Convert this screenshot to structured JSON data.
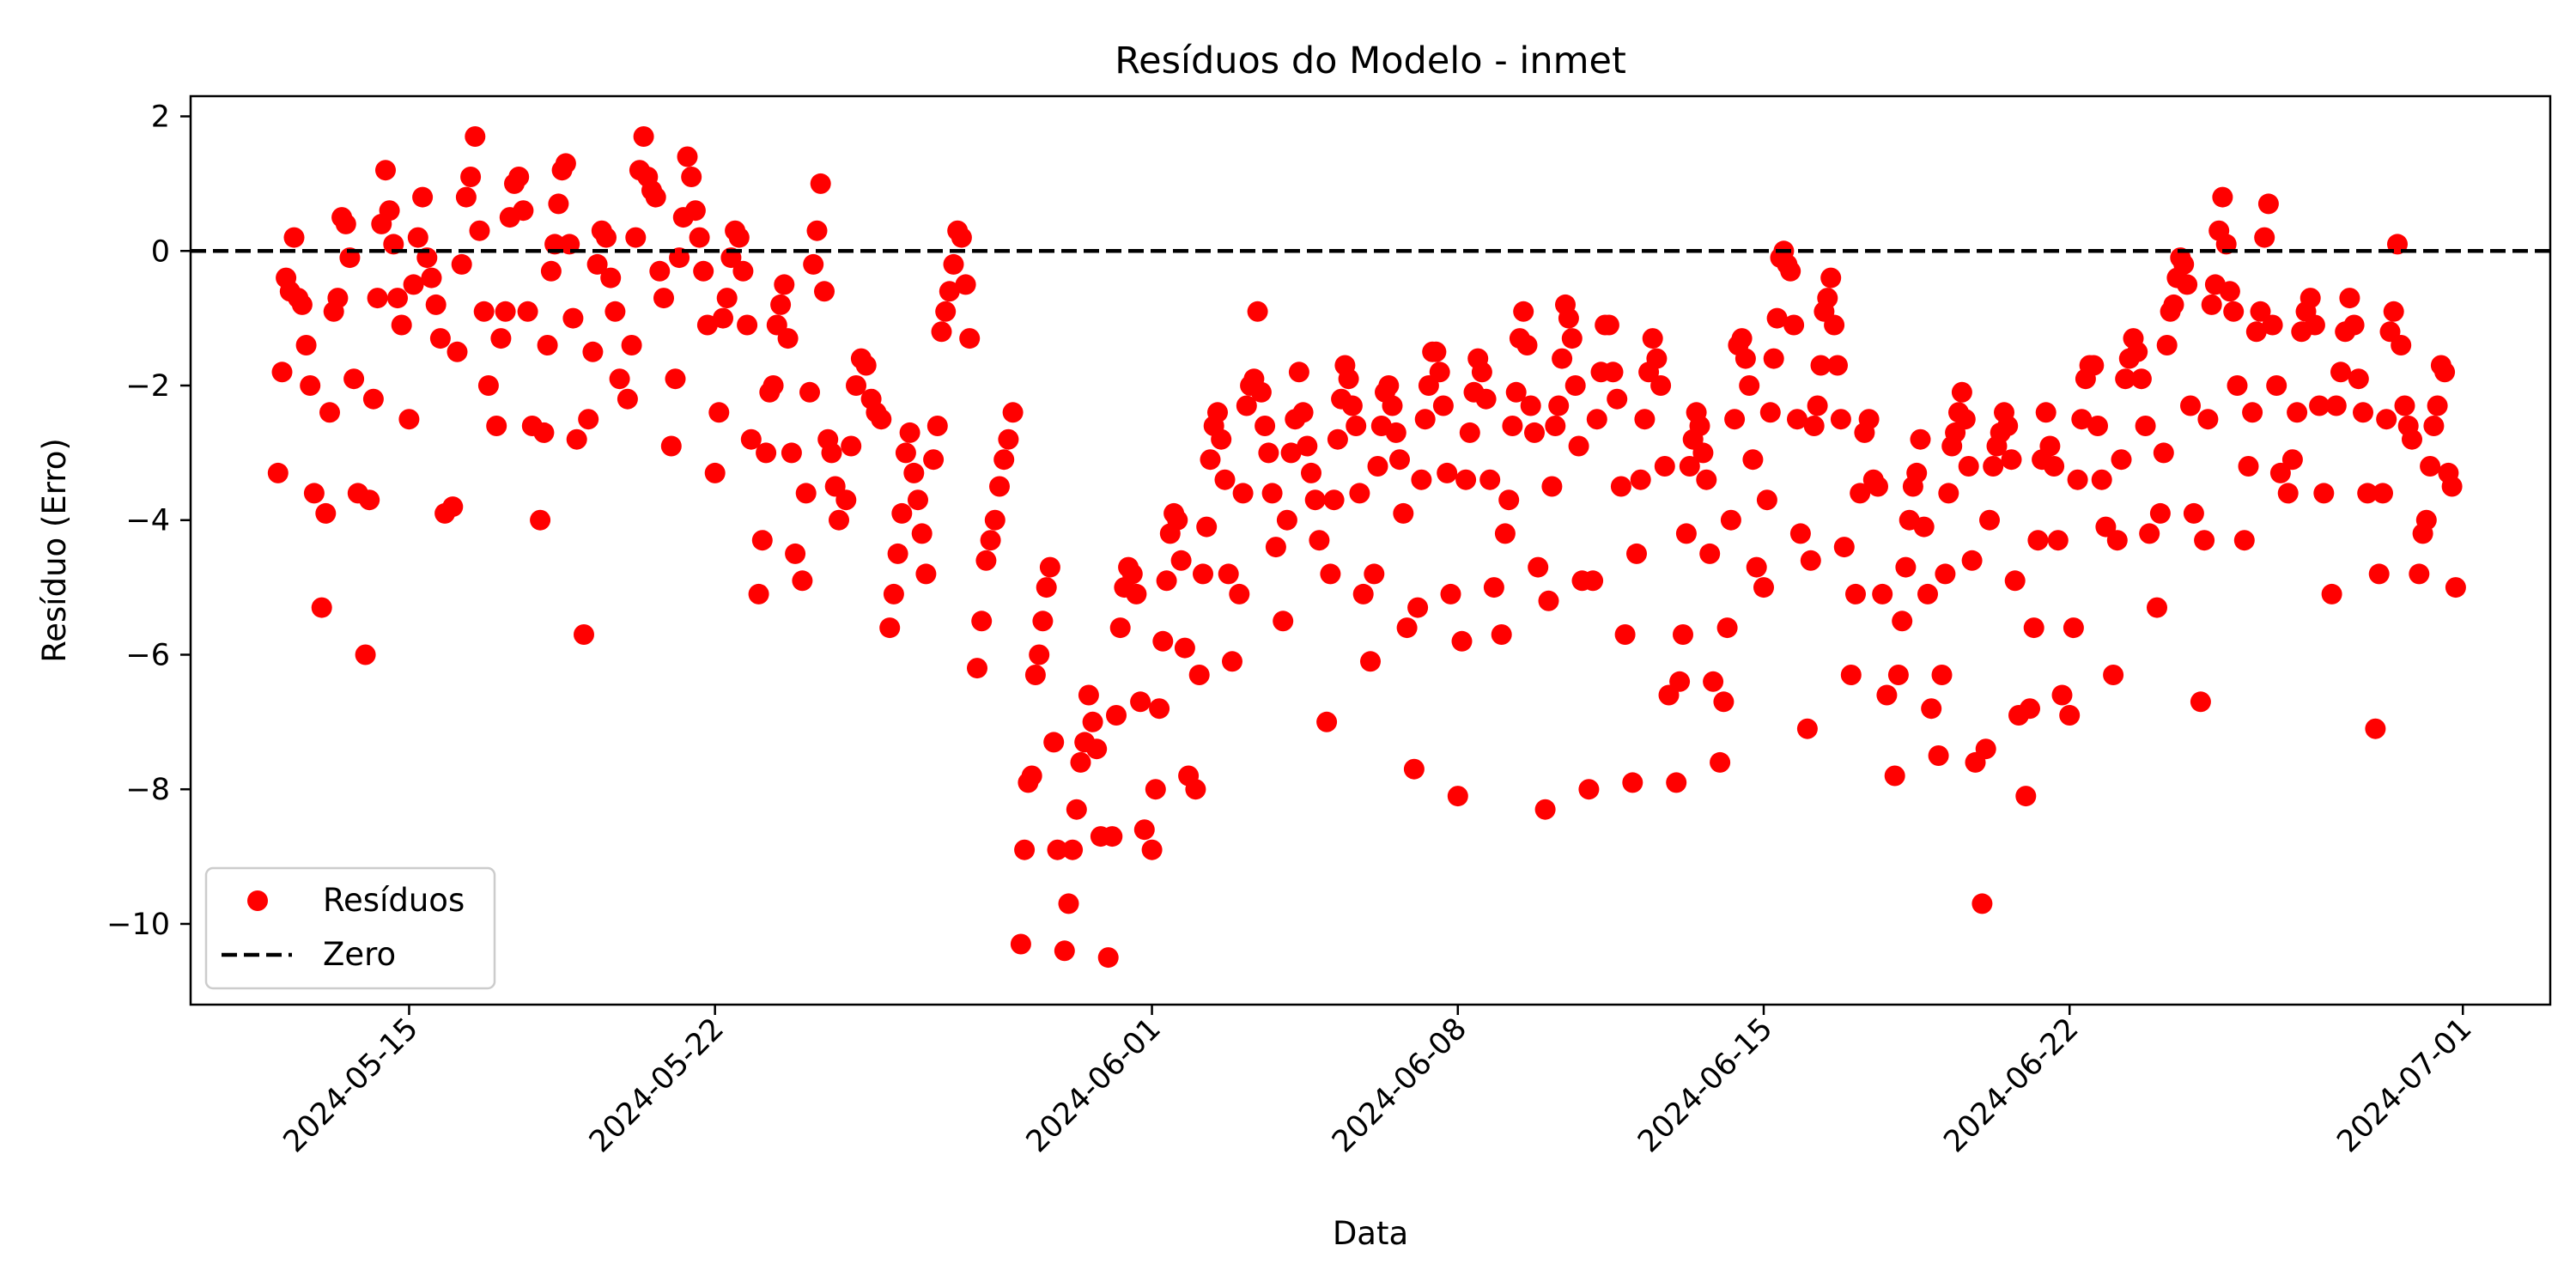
{
  "chart_data": {
    "type": "scatter",
    "title": "Resíduos do Modelo - inmet",
    "xlabel": "Data",
    "ylabel": "Resíduo (Erro)",
    "x_type": "date",
    "xlim": [
      "2024-05-10",
      "2024-07-03"
    ],
    "ylim": [
      -11.2,
      2.3
    ],
    "x_ticks": [
      "2024-05-15",
      "2024-05-22",
      "2024-06-01",
      "2024-06-08",
      "2024-06-15",
      "2024-06-22",
      "2024-07-01"
    ],
    "y_ticks": [
      2,
      0,
      -2,
      -4,
      -6,
      -8,
      -10
    ],
    "y_tick_labels": [
      "2",
      "0",
      "−2",
      "−4",
      "−6",
      "−8",
      "−10"
    ],
    "grid": false,
    "legend_position": "bottom-left",
    "reference_line": {
      "y": 0,
      "style": "dashed",
      "color": "#000000",
      "label": "Zero"
    },
    "series": [
      {
        "name": "Resíduos",
        "color": "#ff0000",
        "clusters": [
          {
            "date": "2024-05-12",
            "values": [
              -3.3,
              -1.8,
              -0.4,
              -0.6,
              0.2,
              -0.7,
              -0.8,
              -1.4,
              -2.0,
              -3.6
            ]
          },
          {
            "date": "2024-05-13",
            "values": [
              -5.3,
              -3.9,
              -2.4,
              -0.9,
              -0.7,
              0.5,
              0.4,
              -0.1,
              -1.9,
              -3.6
            ]
          },
          {
            "date": "2024-05-14",
            "values": [
              -6.0,
              -3.7,
              -2.2,
              -0.7,
              0.4,
              1.2,
              0.6,
              0.1,
              -0.7,
              -1.1
            ]
          },
          {
            "date": "2024-05-15",
            "values": [
              -2.5,
              -0.5,
              0.2,
              0.8,
              -0.1,
              -0.4,
              -0.8,
              -1.3,
              -3.9
            ]
          },
          {
            "date": "2024-05-16",
            "values": [
              -3.8,
              -1.5,
              -0.2,
              0.8,
              1.1,
              1.7,
              0.3,
              -0.9,
              -2.0
            ]
          },
          {
            "date": "2024-05-17",
            "values": [
              -2.6,
              -1.3,
              -0.9,
              0.5,
              1.0,
              1.1,
              0.6,
              -0.9,
              -2.6
            ]
          },
          {
            "date": "2024-05-18",
            "values": [
              -4.0,
              -2.7,
              -1.4,
              -0.3,
              0.1,
              0.7,
              1.2,
              1.3,
              0.1,
              -1.0,
              -2.8
            ]
          },
          {
            "date": "2024-05-19",
            "values": [
              -5.7,
              -2.5,
              -1.5,
              -0.2,
              0.3,
              0.2,
              -0.4,
              -0.9,
              -1.9
            ]
          },
          {
            "date": "2024-05-20",
            "values": [
              -2.2,
              -1.4,
              0.2,
              1.2,
              1.7,
              1.1,
              0.9,
              0.8,
              -0.3,
              -0.7
            ]
          },
          {
            "date": "2024-05-21",
            "values": [
              -2.9,
              -1.9,
              -0.1,
              0.5,
              1.4,
              1.1,
              0.6,
              0.2,
              -0.3,
              -1.1
            ]
          },
          {
            "date": "2024-05-22",
            "values": [
              -3.3,
              -2.4,
              -1.0,
              -0.7,
              -0.1,
              0.3,
              0.2,
              -0.3,
              -1.1,
              -2.8
            ]
          },
          {
            "date": "2024-05-23",
            "values": [
              -5.1,
              -4.3,
              -3.0,
              -2.1,
              -2.0,
              -1.1,
              -0.8,
              -0.5,
              -1.3,
              -3.0,
              -4.5
            ]
          },
          {
            "date": "2024-05-24",
            "values": [
              -4.9,
              -3.6,
              -2.1,
              -0.2,
              0.3,
              1.0,
              -0.6,
              -2.8,
              -3.0,
              -3.5,
              -4.0
            ]
          },
          {
            "date": "2024-05-25",
            "values": [
              -3.7,
              -2.9,
              -2.0,
              -1.6,
              -1.7,
              -2.2,
              -2.4,
              -2.5
            ]
          },
          {
            "date": "2024-05-26",
            "values": [
              -5.6,
              -5.1,
              -4.5,
              -3.9,
              -3.0,
              -2.7,
              -3.3,
              -3.7,
              -4.2,
              -4.8
            ]
          },
          {
            "date": "2024-05-27",
            "values": [
              -3.1,
              -2.6,
              -1.2,
              -0.9,
              -0.6,
              -0.2,
              0.3,
              0.2,
              -0.5,
              -1.3
            ]
          },
          {
            "date": "2024-05-28",
            "values": [
              -6.2,
              -5.5,
              -4.6,
              -4.3,
              -4.0,
              -3.5,
              -3.1,
              -2.8,
              -2.4
            ]
          },
          {
            "date": "2024-05-29",
            "values": [
              -10.3,
              -8.9,
              -7.9,
              -7.8,
              -6.3,
              -6.0,
              -5.5,
              -5.0,
              -4.7,
              -7.3,
              -8.9
            ]
          },
          {
            "date": "2024-05-30",
            "values": [
              -10.4,
              -9.7,
              -8.9,
              -8.3,
              -7.6,
              -7.3,
              -6.6,
              -7.0,
              -7.4,
              -8.7
            ]
          },
          {
            "date": "2024-05-31",
            "values": [
              -10.5,
              -8.7,
              -6.9,
              -5.6,
              -5.0,
              -4.7,
              -4.8,
              -5.1,
              -6.7,
              -8.6
            ]
          },
          {
            "date": "2024-06-01",
            "values": [
              -8.9,
              -8.0,
              -6.8,
              -5.8,
              -4.9,
              -4.2,
              -3.9,
              -4.0,
              -4.6,
              -5.9,
              -7.8
            ]
          },
          {
            "date": "2024-06-02",
            "values": [
              -8.0,
              -6.3,
              -4.8,
              -4.1,
              -3.1,
              -2.6,
              -2.4,
              -2.8,
              -3.4,
              -4.8,
              -6.1
            ]
          },
          {
            "date": "2024-06-03",
            "values": [
              -5.1,
              -3.6,
              -2.3,
              -2.0,
              -1.9,
              -0.9,
              -2.1,
              -2.6,
              -3.0,
              -3.6,
              -4.4
            ]
          },
          {
            "date": "2024-06-04",
            "values": [
              -5.5,
              -4.0,
              -3.0,
              -2.5,
              -1.8,
              -2.4,
              -2.9,
              -3.3,
              -3.7,
              -4.3
            ]
          },
          {
            "date": "2024-06-05",
            "values": [
              -7.0,
              -4.8,
              -3.7,
              -2.8,
              -2.2,
              -1.7,
              -1.9,
              -2.3,
              -2.6,
              -3.6,
              -5.1
            ]
          },
          {
            "date": "2024-06-06",
            "values": [
              -6.1,
              -4.8,
              -3.2,
              -2.6,
              -2.1,
              -2.0,
              -2.3,
              -2.7,
              -3.1,
              -3.9,
              -5.6
            ]
          },
          {
            "date": "2024-06-07",
            "values": [
              -7.7,
              -5.3,
              -3.4,
              -2.5,
              -2.0,
              -1.5,
              -1.5,
              -1.8,
              -2.3,
              -3.3,
              -5.1
            ]
          },
          {
            "date": "2024-06-08",
            "values": [
              -8.1,
              -5.8,
              -3.4,
              -2.7,
              -2.1,
              -1.6,
              -1.8,
              -2.2,
              -3.4,
              -5.0
            ]
          },
          {
            "date": "2024-06-09",
            "values": [
              -5.7,
              -4.2,
              -3.7,
              -2.6,
              -2.1,
              -1.3,
              -0.9,
              -1.4,
              -2.3,
              -2.7,
              -4.7
            ]
          },
          {
            "date": "2024-06-10",
            "values": [
              -8.3,
              -5.2,
              -3.5,
              -2.6,
              -2.3,
              -1.6,
              -0.8,
              -1.0,
              -1.3,
              -2.0,
              -2.9,
              -4.9
            ]
          },
          {
            "date": "2024-06-11",
            "values": [
              -8.0,
              -4.9,
              -2.5,
              -1.8,
              -1.1,
              -1.1,
              -1.8,
              -2.2,
              -3.5,
              -5.7
            ]
          },
          {
            "date": "2024-06-12",
            "values": [
              -7.9,
              -4.5,
              -3.4,
              -2.5,
              -1.8,
              -1.3,
              -1.6,
              -2.0,
              -3.2,
              -6.6
            ]
          },
          {
            "date": "2024-06-13",
            "values": [
              -7.9,
              -6.4,
              -5.7,
              -4.2,
              -3.2,
              -2.8,
              -2.4,
              -2.6,
              -3.0,
              -3.4,
              -4.5,
              -6.4
            ]
          },
          {
            "date": "2024-06-14",
            "values": [
              -7.6,
              -6.7,
              -5.6,
              -4.0,
              -2.5,
              -1.4,
              -1.3,
              -1.6,
              -2.0,
              -3.1,
              -4.7
            ]
          },
          {
            "date": "2024-06-15",
            "values": [
              -5.0,
              -3.7,
              -2.4,
              -1.6,
              -1.0,
              -0.1,
              0.0,
              -0.2,
              -0.3,
              -1.1,
              -2.5,
              -4.2
            ]
          },
          {
            "date": "2024-06-16",
            "values": [
              -7.1,
              -4.6,
              -2.6,
              -2.3,
              -1.7,
              -0.9,
              -0.7,
              -0.4,
              -1.1,
              -1.7,
              -2.5,
              -4.4
            ]
          },
          {
            "date": "2024-06-17",
            "values": [
              -6.3,
              -5.1,
              -3.6,
              -2.7,
              -2.5,
              -3.4,
              -3.5,
              -5.1,
              -6.6
            ]
          },
          {
            "date": "2024-06-18",
            "values": [
              -7.8,
              -6.3,
              -5.5,
              -4.7,
              -4.0,
              -3.5,
              -3.3,
              -2.8,
              -4.1,
              -5.1,
              -6.8
            ]
          },
          {
            "date": "2024-06-19",
            "values": [
              -7.5,
              -6.3,
              -4.8,
              -3.6,
              -2.9,
              -2.7,
              -2.4,
              -2.1,
              -2.5,
              -3.2,
              -4.6,
              -7.6
            ]
          },
          {
            "date": "2024-06-20",
            "values": [
              -9.7,
              -7.4,
              -4.0,
              -3.2,
              -2.9,
              -2.7,
              -2.4,
              -2.6,
              -3.1,
              -4.9,
              -6.9
            ]
          },
          {
            "date": "2024-06-21",
            "values": [
              -8.1,
              -6.8,
              -5.6,
              -4.3,
              -3.1,
              -2.4,
              -2.9,
              -3.2,
              -4.3,
              -6.6
            ]
          },
          {
            "date": "2024-06-22",
            "values": [
              -6.9,
              -5.6,
              -3.4,
              -2.5,
              -1.9,
              -1.7,
              -1.7,
              -2.6,
              -3.4,
              -4.1
            ]
          },
          {
            "date": "2024-06-23",
            "values": [
              -6.3,
              -4.3,
              -3.1,
              -1.9,
              -1.6,
              -1.3,
              -1.5,
              -1.9,
              -2.6,
              -4.2
            ]
          },
          {
            "date": "2024-06-24",
            "values": [
              -5.3,
              -3.9,
              -3.0,
              -1.4,
              -0.9,
              -0.8,
              -0.4,
              -0.1,
              -0.2,
              -0.5,
              -2.3,
              -3.9
            ]
          },
          {
            "date": "2024-06-25",
            "values": [
              -6.7,
              -4.3,
              -2.5,
              -0.8,
              -0.5,
              0.3,
              0.8,
              0.1,
              -0.6,
              -0.9,
              -2.0
            ]
          },
          {
            "date": "2024-06-26",
            "values": [
              -4.3,
              -3.2,
              -2.4,
              -1.2,
              -0.9,
              0.2,
              0.7,
              -1.1,
              -2.0,
              -3.3
            ]
          },
          {
            "date": "2024-06-27",
            "values": [
              -3.6,
              -3.1,
              -2.4,
              -1.2,
              -0.9,
              -0.7,
              -1.1,
              -2.3,
              -3.6
            ]
          },
          {
            "date": "2024-06-28",
            "values": [
              -5.1,
              -2.3,
              -1.8,
              -1.2,
              -0.7,
              -1.1,
              -1.9,
              -2.4,
              -3.6
            ]
          },
          {
            "date": "2024-06-29",
            "values": [
              -7.1,
              -4.8,
              -3.6,
              -2.5,
              -1.2,
              -0.9,
              0.1,
              -1.4,
              -2.3,
              -2.6,
              -2.8
            ]
          },
          {
            "date": "2024-06-30",
            "values": [
              -4.8,
              -4.2,
              -4.0,
              -3.2,
              -2.6,
              -2.3,
              -1.7,
              -1.8,
              -3.3,
              -3.5,
              -5.0
            ]
          }
        ]
      }
    ],
    "legend": [
      {
        "label": "Resíduos",
        "marker": "circle",
        "color": "#ff0000"
      },
      {
        "label": "Zero",
        "marker": "dashed-line",
        "color": "#000000"
      }
    ]
  }
}
